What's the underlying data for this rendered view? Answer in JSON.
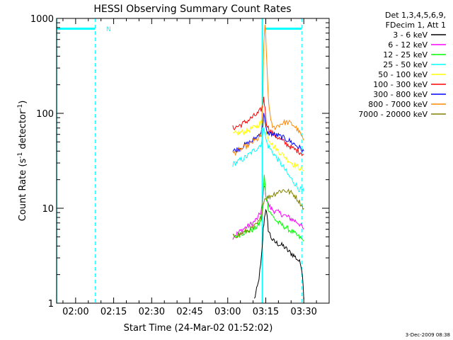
{
  "chart_data": {
    "type": "line",
    "title": "HESSI Observing Summary Count Rates",
    "xlabel": "Start Time (24-Mar-02 01:52:02)",
    "ylabel_main": "Count Rate (s",
    "ylabel_sup1": "-1",
    "ylabel_mid": " detector",
    "ylabel_sup2": "-1",
    "ylabel_end": ")",
    "yscale": "log",
    "ylim": [
      1,
      1000
    ],
    "xlim_minutes": [
      -7.5,
      100
    ],
    "x_ticks": [
      {
        "m": 0,
        "label": "02:00"
      },
      {
        "m": 15,
        "label": "02:15"
      },
      {
        "m": 30,
        "label": "02:30"
      },
      {
        "m": 45,
        "label": "02:45"
      },
      {
        "m": 60,
        "label": "03:00"
      },
      {
        "m": 75,
        "label": "03:15"
      },
      {
        "m": 90,
        "label": "03:30"
      }
    ],
    "y_ticks": [
      {
        "v": 1,
        "label": "1"
      },
      {
        "v": 10,
        "label": "10"
      },
      {
        "v": 100,
        "label": "100"
      },
      {
        "v": 1000,
        "label": "1000"
      }
    ],
    "legend_header": [
      "Det 1,3,4,5,6,9,",
      "FDecim 1, Att 1"
    ],
    "footer_date": "3-Dec-2009 08:38",
    "night_marker": "N",
    "series": [
      {
        "name": "3 - 6 keV",
        "color": "#000000",
        "x": [
          70.5,
          72,
          73,
          73.6,
          74,
          74.5,
          75,
          75.5,
          76,
          77,
          78,
          80,
          82,
          84,
          86,
          88,
          89,
          89.5,
          90
        ],
        "y": [
          1.1,
          1.6,
          2.5,
          3.8,
          6,
          8,
          10,
          8,
          6,
          5,
          4.5,
          4.2,
          4,
          3.5,
          3.2,
          2.8,
          2.5,
          2,
          1.1
        ]
      },
      {
        "name": "6 - 12 keV",
        "color": "#ff00ff",
        "x": [
          62,
          66,
          70,
          72,
          73,
          73.6,
          74,
          74.4,
          75,
          76,
          77,
          78,
          80,
          82,
          84,
          86,
          88,
          90
        ],
        "y": [
          5,
          6,
          7,
          8,
          9,
          11,
          14,
          18,
          14,
          11,
          10,
          9.5,
          9,
          8.5,
          8,
          7.5,
          7,
          6
        ]
      },
      {
        "name": "12 - 25 keV",
        "color": "#00ff00",
        "x": [
          62,
          66,
          70,
          72,
          73,
          73.6,
          74,
          74.4,
          75,
          76,
          78,
          80,
          82,
          84,
          86,
          88,
          90
        ],
        "y": [
          5,
          5.5,
          6,
          6.5,
          7.5,
          10,
          15,
          22,
          14,
          10,
          8,
          7,
          6.5,
          6,
          5.5,
          5,
          4.5
        ]
      },
      {
        "name": "25 - 50 keV",
        "color": "#00ffff",
        "x": [
          62,
          64,
          66,
          68,
          70,
          72,
          73.2,
          73.8,
          74.2,
          74.7,
          75.3,
          76,
          78,
          80,
          82,
          84,
          86,
          88,
          90
        ],
        "y": [
          29,
          31,
          33,
          36,
          40,
          44,
          48,
          55,
          75,
          60,
          50,
          45,
          38,
          32,
          27,
          22,
          19,
          16,
          15
        ]
      },
      {
        "name": "50 - 100 keV",
        "color": "#ffff00",
        "x": [
          62,
          64,
          66,
          68,
          70,
          72,
          73.2,
          73.8,
          74.2,
          74.7,
          75.3,
          76,
          78,
          80,
          82,
          84,
          86,
          88,
          90
        ],
        "y": [
          60,
          62,
          64,
          66,
          70,
          75,
          80,
          82,
          90,
          78,
          65,
          55,
          45,
          40,
          36,
          32,
          29,
          27,
          25
        ]
      },
      {
        "name": "100 - 300 keV",
        "color": "#ff0000",
        "x": [
          62,
          64,
          66,
          68,
          70,
          72,
          73.2,
          73.8,
          74.2,
          74.7,
          75.3,
          76,
          78,
          80,
          82,
          84,
          86,
          88,
          90
        ],
        "y": [
          70,
          73,
          78,
          84,
          92,
          100,
          110,
          120,
          150,
          110,
          80,
          70,
          60,
          55,
          50,
          46,
          42,
          40,
          37
        ]
      },
      {
        "name": "300 - 800 keV",
        "color": "#0000ff",
        "x": [
          62,
          64,
          66,
          68,
          70,
          72,
          73.2,
          73.8,
          74.2,
          74.7,
          75.3,
          76,
          78,
          80,
          82,
          84,
          86,
          88,
          90
        ],
        "y": [
          40,
          42,
          45,
          48,
          52,
          58,
          65,
          75,
          100,
          80,
          65,
          62,
          60,
          58,
          55,
          52,
          48,
          44,
          40
        ]
      },
      {
        "name": "800 - 7000 keV",
        "color": "#ff8800",
        "x": [
          62,
          64,
          66,
          68,
          70,
          72,
          73.2,
          73.8,
          74.2,
          74.7,
          75.3,
          76,
          77,
          78,
          80,
          82,
          84,
          86,
          88,
          90
        ],
        "y": [
          38,
          40,
          43,
          46,
          50,
          54,
          58,
          120,
          500,
          900,
          400,
          150,
          80,
          70,
          75,
          80,
          80,
          75,
          65,
          52
        ]
      },
      {
        "name": "7000 - 20000 keV",
        "color": "#808000",
        "x": [
          62,
          66,
          70,
          72,
          73.2,
          73.8,
          74.2,
          75,
          76,
          78,
          80,
          82,
          84,
          86,
          88,
          90
        ],
        "y": [
          5,
          5.5,
          6.2,
          7,
          8,
          10,
          12,
          13,
          13,
          14,
          15,
          15.5,
          15,
          14,
          12,
          10
        ]
      }
    ],
    "overlays": {
      "color": "#00ffff",
      "solid_vlines": [
        -7.5,
        73.6
      ],
      "dashed_vlines": [
        7.7,
        89.2
      ],
      "bars": [
        {
          "x0": -7.5,
          "x1": 7.7,
          "y": 780
        },
        {
          "x0": 74.6,
          "x1": 89.2,
          "y": 780
        }
      ]
    }
  }
}
